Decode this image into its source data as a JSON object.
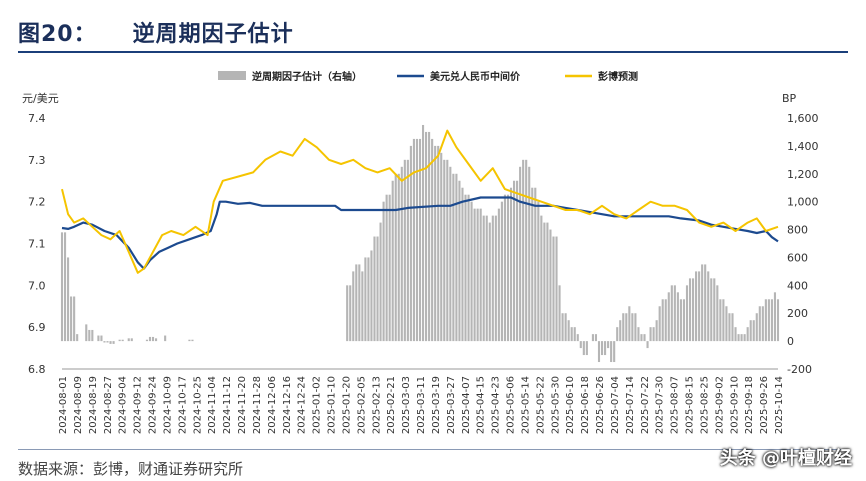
{
  "header": {
    "figure_no": "图20：",
    "title": "逆周期因子估计"
  },
  "source": "数据来源：彭博，财通证券研究所",
  "watermark": "头条 @叶檀财经",
  "chart_data": {
    "type": "bar+line",
    "title": "逆周期因子估计",
    "ylabel_left": "元/美元",
    "ylabel_right": "BP",
    "ylim_left": [
      6.8,
      7.4
    ],
    "ylim_right": [
      -200,
      1600
    ],
    "yticks_left": [
      "7.4",
      "7.3",
      "7.2",
      "7.1",
      "7.0",
      "6.9",
      "6.8"
    ],
    "yticks_right": [
      "1,600",
      "1,400",
      "1,200",
      "1,000",
      "800",
      "600",
      "400",
      "200",
      "0",
      "-200"
    ],
    "legend": [
      "逆周期因子估计（右轴）",
      "美元兑人民币中间价",
      "彭博预测"
    ],
    "legend_position": "top",
    "x_labels": [
      "2024-08-01",
      "2024-08-09",
      "2024-08-19",
      "2024-08-27",
      "2024-09-04",
      "2024-09-12",
      "2024-09-24",
      "2024-10-09",
      "2024-10-17",
      "2024-10-25",
      "2024-11-04",
      "2024-11-12",
      "2024-11-20",
      "2024-11-28",
      "2024-12-06",
      "2024-12-16",
      "2024-12-24",
      "2025-01-02",
      "2025-01-10",
      "2025-01-20",
      "2025-02-05",
      "2025-02-13",
      "2025-02-21",
      "2025-03-03",
      "2025-03-11",
      "2025-03-19",
      "2025-03-27",
      "2025-04-07",
      "2025-04-15",
      "2025-04-23",
      "2025-05-06",
      "2025-05-14",
      "2025-05-22",
      "2025-05-30",
      "2025-06-10",
      "2025-06-18",
      "2025-06-26",
      "2025-07-04",
      "2025-07-14",
      "2025-07-22",
      "2025-07-30",
      "2025-08-07",
      "2025-08-15",
      "2025-08-25",
      "2025-09-02",
      "2025-09-10",
      "2025-09-18",
      "2025-09-26",
      "2025-10-14"
    ],
    "series": [
      {
        "name": "逆周期因子估计（右轴）",
        "axis": "right",
        "color": "#b5b5b5",
        "values": [
          780,
          600,
          320,
          50,
          0,
          120,
          80,
          0,
          40,
          -10,
          -10,
          -20,
          0,
          10,
          0,
          20,
          0,
          0,
          0,
          10,
          30,
          20,
          0,
          40,
          0,
          0,
          0,
          0,
          0,
          10,
          0,
          0,
          0,
          0,
          0,
          0,
          0,
          0,
          0,
          0,
          0,
          0,
          0,
          0,
          0,
          0,
          0,
          0,
          0,
          0,
          0,
          0,
          0,
          0,
          0,
          0,
          0,
          0,
          0,
          0,
          0,
          0,
          0,
          0,
          0,
          400,
          500,
          550,
          500,
          600,
          650,
          750,
          850,
          1000,
          1050,
          1150,
          1200,
          1250,
          1300,
          1400,
          1450,
          1450,
          1550,
          1500,
          1450,
          1400,
          1350,
          1300,
          1250,
          1200,
          1150,
          1100,
          1050,
          1000,
          950,
          950,
          900,
          850,
          900,
          950,
          1000,
          1050,
          1100,
          1150,
          1250,
          1300,
          1250,
          1100,
          1000,
          900,
          850,
          800,
          750,
          400,
          200,
          150,
          100,
          50,
          -50,
          -100,
          0,
          50,
          -150,
          -100,
          -50,
          -150,
          100,
          150,
          200,
          250,
          200,
          100,
          50,
          -50,
          100,
          150,
          250,
          300,
          350,
          400,
          350,
          300,
          400,
          450,
          500,
          500,
          550,
          500,
          450,
          400,
          300,
          250,
          200,
          100,
          50,
          50,
          100,
          150,
          200,
          250,
          300,
          300,
          350,
          300
        ],
        "note": "daily values approximated from bar heights"
      },
      {
        "name": "美元兑人民币中间价",
        "axis": "left",
        "color": "#1c4a8f",
        "points": [
          [
            0,
            7.137
          ],
          [
            2,
            7.135
          ],
          [
            4,
            7.14
          ],
          [
            7,
            7.15
          ],
          [
            10,
            7.145
          ],
          [
            14,
            7.13
          ],
          [
            18,
            7.12
          ],
          [
            22,
            7.09
          ],
          [
            25,
            7.055
          ],
          [
            27,
            7.04
          ],
          [
            29,
            7.06
          ],
          [
            32,
            7.08
          ],
          [
            35,
            7.09
          ],
          [
            38,
            7.1
          ],
          [
            42,
            7.11
          ],
          [
            46,
            7.12
          ],
          [
            49,
            7.13
          ],
          [
            51,
            7.17
          ],
          [
            52,
            7.2
          ],
          [
            54,
            7.2
          ],
          [
            58,
            7.195
          ],
          [
            62,
            7.197
          ],
          [
            66,
            7.19
          ],
          [
            70,
            7.19
          ],
          [
            90,
            7.19
          ],
          [
            92,
            7.18
          ],
          [
            110,
            7.18
          ],
          [
            114,
            7.185
          ],
          [
            124,
            7.19
          ],
          [
            128,
            7.19
          ],
          [
            132,
            7.2
          ],
          [
            138,
            7.21
          ],
          [
            148,
            7.21
          ],
          [
            151,
            7.2
          ],
          [
            156,
            7.19
          ],
          [
            162,
            7.19
          ],
          [
            166,
            7.185
          ],
          [
            170,
            7.18
          ],
          [
            174,
            7.175
          ],
          [
            178,
            7.17
          ],
          [
            182,
            7.165
          ],
          [
            200,
            7.165
          ],
          [
            204,
            7.16
          ],
          [
            210,
            7.155
          ],
          [
            214,
            7.145
          ],
          [
            218,
            7.14
          ],
          [
            222,
            7.135
          ],
          [
            226,
            7.13
          ],
          [
            229,
            7.125
          ],
          [
            232,
            7.13
          ],
          [
            234,
            7.115
          ],
          [
            236,
            7.105
          ]
        ]
      },
      {
        "name": "彭博预测",
        "axis": "left",
        "color": "#f5c400",
        "points": [
          [
            0,
            7.23
          ],
          [
            2,
            7.17
          ],
          [
            4,
            7.15
          ],
          [
            7,
            7.16
          ],
          [
            10,
            7.14
          ],
          [
            13,
            7.12
          ],
          [
            16,
            7.11
          ],
          [
            19,
            7.13
          ],
          [
            22,
            7.08
          ],
          [
            25,
            7.03
          ],
          [
            27,
            7.04
          ],
          [
            30,
            7.08
          ],
          [
            33,
            7.12
          ],
          [
            36,
            7.13
          ],
          [
            40,
            7.12
          ],
          [
            44,
            7.14
          ],
          [
            48,
            7.12
          ],
          [
            50,
            7.2
          ],
          [
            53,
            7.25
          ],
          [
            58,
            7.26
          ],
          [
            63,
            7.27
          ],
          [
            67,
            7.3
          ],
          [
            72,
            7.32
          ],
          [
            76,
            7.31
          ],
          [
            80,
            7.35
          ],
          [
            84,
            7.33
          ],
          [
            88,
            7.3
          ],
          [
            92,
            7.29
          ],
          [
            96,
            7.3
          ],
          [
            100,
            7.28
          ],
          [
            104,
            7.27
          ],
          [
            108,
            7.28
          ],
          [
            112,
            7.25
          ],
          [
            116,
            7.27
          ],
          [
            120,
            7.28
          ],
          [
            124,
            7.31
          ],
          [
            127,
            7.37
          ],
          [
            130,
            7.33
          ],
          [
            134,
            7.29
          ],
          [
            138,
            7.25
          ],
          [
            142,
            7.28
          ],
          [
            146,
            7.23
          ],
          [
            150,
            7.22
          ],
          [
            154,
            7.21
          ],
          [
            158,
            7.2
          ],
          [
            162,
            7.19
          ],
          [
            166,
            7.18
          ],
          [
            170,
            7.18
          ],
          [
            174,
            7.17
          ],
          [
            178,
            7.19
          ],
          [
            182,
            7.17
          ],
          [
            186,
            7.16
          ],
          [
            190,
            7.18
          ],
          [
            194,
            7.2
          ],
          [
            198,
            7.19
          ],
          [
            202,
            7.19
          ],
          [
            206,
            7.18
          ],
          [
            210,
            7.15
          ],
          [
            214,
            7.14
          ],
          [
            218,
            7.15
          ],
          [
            222,
            7.13
          ],
          [
            226,
            7.15
          ],
          [
            229,
            7.16
          ],
          [
            232,
            7.13
          ],
          [
            236,
            7.14
          ]
        ]
      }
    ]
  }
}
